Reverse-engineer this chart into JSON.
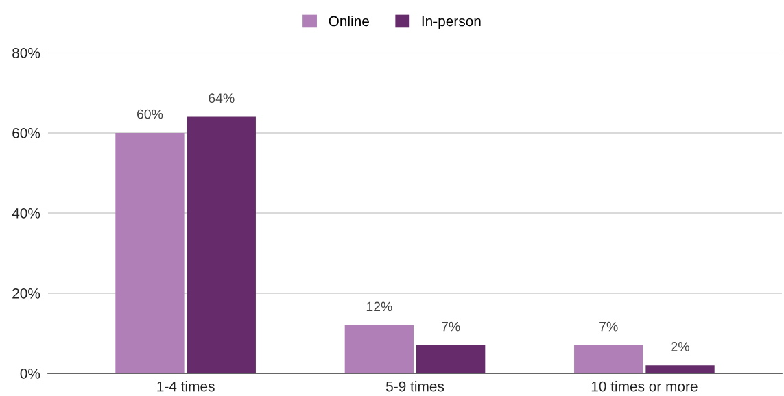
{
  "chart_data": {
    "type": "bar",
    "categories": [
      "1-4 times",
      "5-9 times",
      "10 times or more"
    ],
    "series": [
      {
        "name": "Online",
        "color": "#b07fb8",
        "values": [
          60,
          12,
          7
        ],
        "value_labels": [
          "60%",
          "12%",
          "7%"
        ]
      },
      {
        "name": "In-person",
        "color": "#652b6a",
        "values": [
          64,
          7,
          2
        ],
        "value_labels": [
          "64%",
          "7%",
          "2%"
        ]
      }
    ],
    "ylim": [
      0,
      80
    ],
    "yticks": [
      {
        "value": 0,
        "label": "0%"
      },
      {
        "value": 20,
        "label": "20%"
      },
      {
        "value": 40,
        "label": "40%"
      },
      {
        "value": 60,
        "label": "60%"
      },
      {
        "value": 80,
        "label": "80%"
      }
    ],
    "grid": "y",
    "legend": "top"
  }
}
